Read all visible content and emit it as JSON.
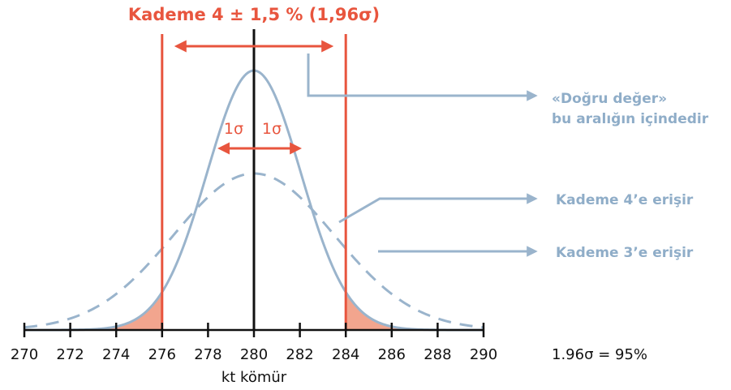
{
  "title": "Kademe 4 ± 1,5 % (1,96σ)",
  "sigma_left_label": "1σ",
  "sigma_right_label": "1σ",
  "annotations": [
    {
      "lines": [
        "«Doğru değer»",
        "bu aralığın içindedir"
      ]
    },
    {
      "lines": [
        "Kademe 4’e erişir"
      ]
    },
    {
      "lines": [
        "Kademe 3’e erişir"
      ]
    }
  ],
  "stat_label": "1.96σ = 95%",
  "chart_data": {
    "type": "line",
    "title": "Kademe 4 ± 1,5 % (1,96σ)",
    "xlabel": "kt kömür",
    "ylabel": "",
    "x_ticks": [
      270,
      272,
      274,
      276,
      278,
      280,
      282,
      284,
      286,
      288,
      290
    ],
    "xlim": [
      270,
      290
    ],
    "mean": 280,
    "series": [
      {
        "name": "Kademe 4’e erişir",
        "style": "solid",
        "sigma": 2.04,
        "color": "#9ab4cc"
      },
      {
        "name": "Kademe 3’e erişir",
        "style": "dashed",
        "sigma": 3.5,
        "color": "#9ab4cc"
      }
    ],
    "interval": [
      276,
      284
    ],
    "sigma_marks": [
      278.8,
      281.7
    ],
    "colors": {
      "red": "#e8553e",
      "blue": "#9ab4cc",
      "fill": "#f2a58e",
      "axis": "#111111"
    }
  }
}
